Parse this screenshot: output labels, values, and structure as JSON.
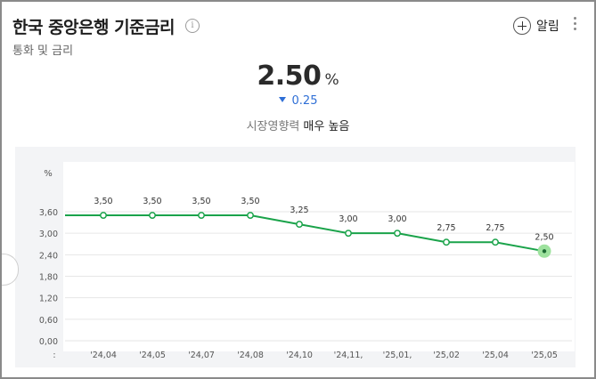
{
  "header": {
    "title": "한국 중앙은행 기준금리",
    "subtitle": "통화 및 금리",
    "info_symbol": "i",
    "alert_label": "알림"
  },
  "summary": {
    "value": "2.50",
    "unit": "%",
    "change": "0.25",
    "change_direction": "down",
    "impact_label": "시장영향력",
    "impact_value": "매우 높음"
  },
  "colors": {
    "line": "#1aa34a",
    "change": "#2f6fd6",
    "highlight": "#9ee29e"
  },
  "chart_data": {
    "type": "line",
    "y_unit_label": "%",
    "ylim": [
      0,
      3.6
    ],
    "y_ticks": [
      "0,00",
      "0,60",
      "1,20",
      "1,80",
      "2,40",
      "3,00",
      "3,60"
    ],
    "categories": [
      ":",
      "'24,04",
      "'24,05",
      "'24,07",
      "'24,08",
      "'24,10",
      "'24,11,",
      "'25,01,",
      "'25,02",
      "'25,04",
      "'25,05"
    ],
    "values": [
      3.5,
      3.5,
      3.5,
      3.5,
      3.5,
      3.25,
      3.0,
      3.0,
      2.75,
      2.75,
      2.5
    ],
    "data_labels": [
      null,
      "3,50",
      "3,50",
      "3,50",
      "3,50",
      "3,25",
      "3,00",
      "3,00",
      "2,75",
      "2,75",
      "2,50"
    ],
    "highlight_last": true,
    "grid": true
  }
}
